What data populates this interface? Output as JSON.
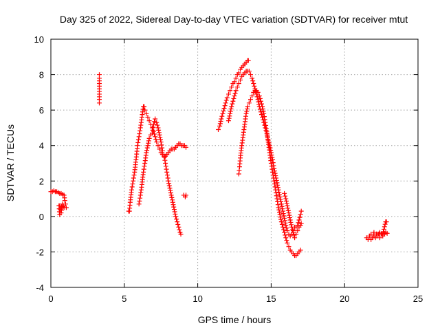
{
  "chart_data": {
    "type": "scatter",
    "title": "Day 325 of 2022, Sidereal Day-to-day VTEC variation (SDTVAR) for receiver mtut",
    "xlabel": "GPS time / hours",
    "ylabel": "SDTVAR / TECUs",
    "xlim": [
      0,
      25
    ],
    "ylim": [
      -4,
      10
    ],
    "xticks": [
      0,
      5,
      10,
      15,
      20,
      25
    ],
    "yticks": [
      -4,
      -2,
      0,
      2,
      4,
      6,
      8,
      10
    ],
    "grid": true,
    "marker": "+",
    "color": "#ff0000",
    "series": [
      {
        "name": "segment-1",
        "points": [
          [
            0.0,
            1.4
          ],
          [
            0.1,
            1.4
          ],
          [
            0.2,
            1.45
          ],
          [
            0.3,
            1.4
          ],
          [
            0.4,
            1.4
          ],
          [
            0.5,
            1.35
          ],
          [
            0.6,
            1.3
          ],
          [
            0.7,
            1.3
          ],
          [
            0.8,
            1.25
          ],
          [
            0.9,
            1.2
          ],
          [
            0.95,
            0.9
          ],
          [
            1.0,
            0.7
          ],
          [
            1.05,
            0.5
          ],
          [
            0.6,
            0.6
          ],
          [
            0.65,
            0.4
          ],
          [
            0.7,
            0.2
          ],
          [
            0.75,
            0.5
          ],
          [
            0.8,
            0.7
          ],
          [
            0.85,
            0.6
          ],
          [
            0.9,
            0.5
          ],
          [
            0.55,
            0.6
          ],
          [
            0.6,
            0.1
          ]
        ]
      },
      {
        "name": "segment-2",
        "points": [
          [
            3.3,
            8.0
          ],
          [
            3.3,
            7.8
          ],
          [
            3.3,
            6.6
          ],
          [
            3.3,
            6.4
          ]
        ]
      },
      {
        "name": "segment-3a",
        "points": [
          [
            5.3,
            0.3
          ],
          [
            5.35,
            0.3
          ],
          [
            5.4,
            0.8
          ],
          [
            5.5,
            1.5
          ],
          [
            5.6,
            2.0
          ],
          [
            5.7,
            2.5
          ],
          [
            5.8,
            3.2
          ],
          [
            5.9,
            4.0
          ],
          [
            6.0,
            4.5
          ],
          [
            6.1,
            5.0
          ],
          [
            6.2,
            5.6
          ],
          [
            6.3,
            6.2
          ],
          [
            6.35,
            6.2
          ],
          [
            6.4,
            6.0
          ],
          [
            6.5,
            5.8
          ],
          [
            6.6,
            5.6
          ],
          [
            6.7,
            5.4
          ],
          [
            6.8,
            5.2
          ],
          [
            6.9,
            5.0
          ],
          [
            7.0,
            4.8
          ],
          [
            7.1,
            4.5
          ],
          [
            7.2,
            4.2
          ],
          [
            7.3,
            4.0
          ],
          [
            7.4,
            3.8
          ],
          [
            7.5,
            3.6
          ],
          [
            7.6,
            3.5
          ],
          [
            7.7,
            3.4
          ],
          [
            7.8,
            3.4
          ],
          [
            7.9,
            3.5
          ],
          [
            8.0,
            3.6
          ],
          [
            8.1,
            3.7
          ],
          [
            8.2,
            3.8
          ],
          [
            8.3,
            3.8
          ],
          [
            8.4,
            3.8
          ],
          [
            8.5,
            3.9
          ],
          [
            8.6,
            4.0
          ],
          [
            8.7,
            4.1
          ],
          [
            8.8,
            4.1
          ],
          [
            8.9,
            4.0
          ],
          [
            9.0,
            4.0
          ],
          [
            9.1,
            4.0
          ],
          [
            9.2,
            3.9
          ]
        ]
      },
      {
        "name": "segment-3b",
        "points": [
          [
            6.0,
            0.7
          ],
          [
            6.1,
            1.2
          ],
          [
            6.2,
            1.8
          ],
          [
            6.3,
            2.5
          ],
          [
            6.4,
            3.0
          ],
          [
            6.5,
            3.6
          ],
          [
            6.6,
            4.0
          ],
          [
            6.7,
            4.4
          ],
          [
            6.8,
            4.6
          ],
          [
            6.9,
            4.7
          ],
          [
            7.0,
            5.2
          ],
          [
            7.1,
            5.5
          ],
          [
            7.2,
            5.3
          ],
          [
            7.3,
            5.0
          ],
          [
            7.4,
            4.6
          ],
          [
            7.5,
            4.2
          ],
          [
            7.6,
            3.7
          ],
          [
            7.7,
            3.5
          ],
          [
            7.8,
            3.0
          ],
          [
            7.9,
            2.5
          ],
          [
            8.0,
            2.0
          ],
          [
            8.1,
            1.6
          ],
          [
            8.2,
            1.2
          ],
          [
            8.3,
            0.8
          ],
          [
            8.4,
            0.4
          ],
          [
            8.5,
            0.0
          ],
          [
            8.6,
            -0.3
          ],
          [
            8.7,
            -0.6
          ],
          [
            8.8,
            -0.9
          ],
          [
            8.85,
            -1.0
          ]
        ]
      },
      {
        "name": "segment-3c",
        "points": [
          [
            9.05,
            1.2
          ],
          [
            9.15,
            1.1
          ],
          [
            9.2,
            1.2
          ]
        ]
      },
      {
        "name": "segment-4a",
        "points": [
          [
            11.4,
            4.9
          ],
          [
            11.5,
            5.1
          ],
          [
            11.6,
            5.5
          ],
          [
            11.7,
            5.8
          ],
          [
            11.8,
            6.1
          ],
          [
            11.9,
            6.4
          ],
          [
            12.0,
            6.7
          ],
          [
            12.1,
            6.9
          ],
          [
            12.2,
            7.1
          ],
          [
            12.3,
            7.3
          ],
          [
            12.4,
            7.5
          ],
          [
            12.5,
            7.6
          ],
          [
            12.6,
            7.8
          ],
          [
            12.7,
            8.0
          ],
          [
            12.8,
            8.1
          ],
          [
            12.9,
            8.3
          ],
          [
            13.0,
            8.4
          ],
          [
            13.1,
            8.5
          ],
          [
            13.2,
            8.6
          ],
          [
            13.3,
            8.7
          ],
          [
            13.4,
            8.8
          ],
          [
            13.45,
            8.8
          ]
        ]
      },
      {
        "name": "segment-4b",
        "points": [
          [
            12.1,
            5.4
          ],
          [
            12.2,
            5.8
          ],
          [
            12.3,
            6.2
          ],
          [
            12.4,
            6.5
          ],
          [
            12.5,
            6.8
          ],
          [
            12.6,
            7.1
          ],
          [
            12.7,
            7.3
          ],
          [
            12.8,
            7.5
          ],
          [
            12.9,
            7.7
          ],
          [
            13.0,
            7.9
          ],
          [
            13.1,
            8.0
          ],
          [
            13.2,
            8.1
          ],
          [
            13.3,
            8.2
          ],
          [
            13.4,
            8.2
          ],
          [
            13.5,
            8.2
          ],
          [
            13.6,
            8.0
          ],
          [
            13.7,
            7.8
          ],
          [
            13.8,
            7.5
          ],
          [
            13.9,
            7.2
          ],
          [
            14.0,
            6.9
          ],
          [
            14.1,
            6.6
          ],
          [
            14.2,
            6.2
          ],
          [
            14.3,
            5.9
          ],
          [
            14.4,
            5.6
          ],
          [
            14.5,
            5.3
          ],
          [
            14.6,
            5.0
          ],
          [
            14.7,
            4.7
          ],
          [
            14.8,
            4.3
          ],
          [
            14.9,
            4.0
          ],
          [
            15.0,
            3.6
          ],
          [
            15.1,
            3.2
          ],
          [
            15.2,
            2.7
          ],
          [
            15.3,
            2.3
          ],
          [
            15.4,
            1.9
          ],
          [
            15.5,
            1.5
          ],
          [
            15.6,
            1.1
          ],
          [
            15.7,
            0.7
          ],
          [
            15.8,
            0.3
          ],
          [
            15.9,
            -0.1
          ],
          [
            16.0,
            -0.5
          ],
          [
            16.1,
            -0.8
          ],
          [
            16.2,
            -1.0
          ],
          [
            16.3,
            -1.1
          ],
          [
            16.4,
            -1.0
          ],
          [
            16.5,
            -0.8
          ],
          [
            16.6,
            -0.6
          ],
          [
            16.7,
            -0.6
          ],
          [
            16.8,
            -0.5
          ],
          [
            16.9,
            -0.2
          ],
          [
            17.0,
            0.1
          ],
          [
            17.05,
            0.3
          ]
        ]
      },
      {
        "name": "segment-4c",
        "points": [
          [
            12.8,
            2.4
          ],
          [
            12.85,
            2.8
          ],
          [
            12.9,
            3.3
          ],
          [
            13.0,
            4.0
          ],
          [
            13.1,
            4.6
          ],
          [
            13.2,
            5.2
          ],
          [
            13.3,
            5.8
          ],
          [
            13.4,
            6.2
          ],
          [
            13.5,
            6.4
          ],
          [
            13.6,
            6.6
          ],
          [
            13.7,
            6.8
          ],
          [
            13.8,
            7.0
          ],
          [
            13.9,
            7.1
          ],
          [
            14.0,
            7.1
          ],
          [
            14.1,
            7.0
          ],
          [
            14.2,
            6.8
          ],
          [
            14.3,
            6.5
          ],
          [
            14.4,
            6.2
          ],
          [
            14.5,
            5.8
          ],
          [
            14.6,
            5.3
          ],
          [
            14.7,
            4.8
          ],
          [
            14.8,
            4.2
          ],
          [
            14.9,
            3.6
          ],
          [
            15.0,
            3.0
          ],
          [
            15.1,
            2.5
          ],
          [
            15.2,
            2.0
          ],
          [
            15.3,
            1.5
          ],
          [
            15.4,
            1.0
          ],
          [
            15.5,
            0.5
          ],
          [
            15.6,
            0.1
          ],
          [
            15.7,
            -0.3
          ],
          [
            15.8,
            -0.6
          ],
          [
            15.9,
            -0.9
          ],
          [
            16.0,
            -1.2
          ],
          [
            16.1,
            -1.5
          ],
          [
            16.2,
            -1.7
          ],
          [
            16.3,
            -1.9
          ],
          [
            16.4,
            -2.0
          ],
          [
            16.5,
            -2.1
          ],
          [
            16.6,
            -2.2
          ],
          [
            16.7,
            -2.2
          ],
          [
            16.8,
            -2.1
          ],
          [
            16.9,
            -2.0
          ],
          [
            17.0,
            -1.9
          ]
        ]
      },
      {
        "name": "segment-4d",
        "points": [
          [
            15.9,
            1.3
          ],
          [
            16.0,
            1.0
          ],
          [
            16.1,
            0.6
          ],
          [
            16.2,
            0.2
          ],
          [
            16.3,
            -0.2
          ],
          [
            16.4,
            -0.6
          ],
          [
            16.5,
            -0.9
          ],
          [
            16.6,
            -1.2
          ],
          [
            16.7,
            -1.0
          ],
          [
            16.8,
            -0.8
          ],
          [
            16.9,
            -0.6
          ],
          [
            17.0,
            -0.5
          ],
          [
            17.05,
            -0.4
          ]
        ]
      },
      {
        "name": "segment-5",
        "points": [
          [
            21.5,
            -1.2
          ],
          [
            21.6,
            -1.3
          ],
          [
            21.7,
            -1.1
          ],
          [
            21.8,
            -1.3
          ],
          [
            21.9,
            -1.2
          ],
          [
            22.0,
            -1.1
          ],
          [
            22.1,
            -1.2
          ],
          [
            22.2,
            -1.1
          ],
          [
            22.3,
            -1.0
          ],
          [
            22.4,
            -1.2
          ],
          [
            22.5,
            -1.0
          ],
          [
            22.6,
            -1.1
          ],
          [
            22.7,
            -1.0
          ],
          [
            22.8,
            -0.9
          ],
          [
            22.9,
            -0.95
          ],
          [
            21.8,
            -1.0
          ],
          [
            22.0,
            -0.9
          ],
          [
            22.2,
            -1.0
          ],
          [
            22.4,
            -0.9
          ],
          [
            22.6,
            -1.0
          ],
          [
            22.8,
            -0.3
          ],
          [
            22.85,
            -0.3
          ]
        ]
      }
    ]
  }
}
